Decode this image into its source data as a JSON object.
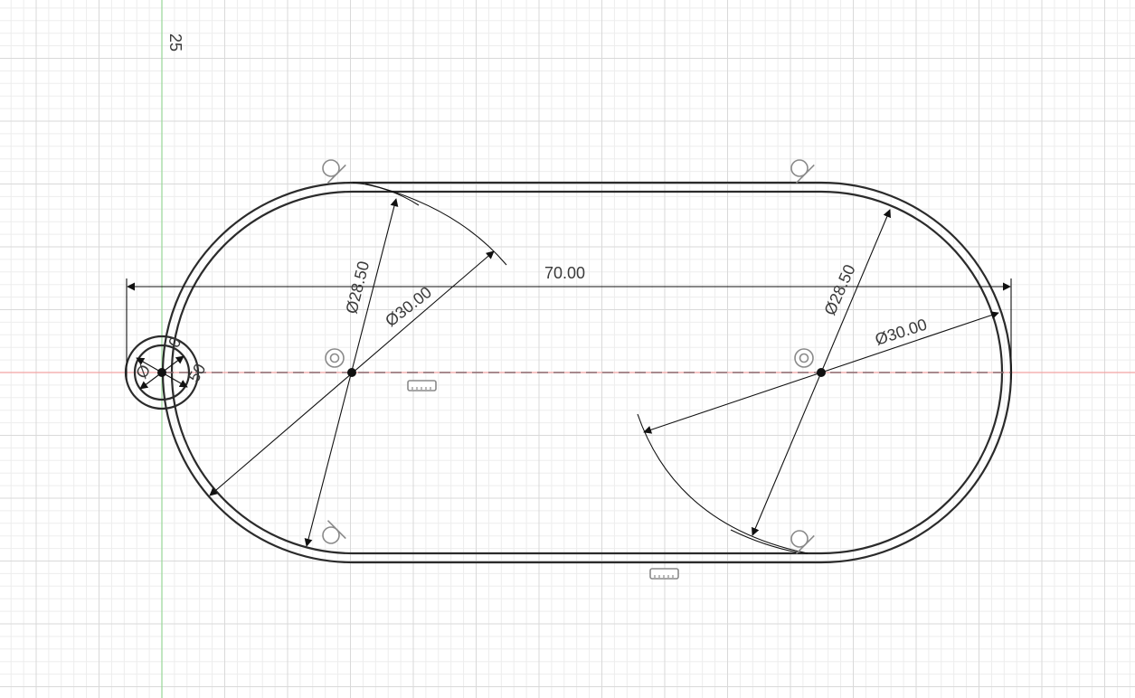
{
  "colors": {
    "background": "#ffffff",
    "grid_minor": "#ededed",
    "grid_major": "#d9d9d9",
    "axis_x": "#f2a3a3",
    "axis_y": "#9ed99e",
    "profile_fill": "#e9f2fa",
    "profile_stroke": "#2b2b2b",
    "dimension": "#111111",
    "constraint_glyph": "#8a8a8a"
  },
  "icons": {
    "tangent": "tangent-constraint-icon",
    "concentric": "concentric-constraint-icon",
    "horizontal": "horizontal-constraint-icon"
  },
  "ruler": {
    "label": "25"
  },
  "dimensions": {
    "overall_length": "70.00",
    "left_inner_diameter": "Ø28.50",
    "left_outer_diameter": "Ø30.00",
    "right_inner_diameter": "Ø28.50",
    "right_outer_diameter": "Ø30.00",
    "small_hole_a": "Ø",
    "small_hole_b": "0",
    "small_hole_c": "50"
  }
}
